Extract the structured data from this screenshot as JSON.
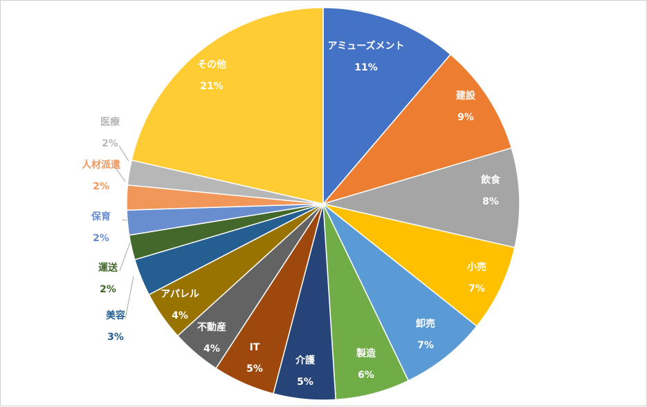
{
  "chart_data": {
    "type": "pie",
    "start_angle_deg": 0,
    "direction": "clockwise",
    "slices": [
      {
        "label": "アミューズメント",
        "value": 11,
        "value_label": "11%",
        "color": "#4472C4",
        "label_color": "#FFFFFF"
      },
      {
        "label": "建設",
        "value": 9,
        "value_label": "9%",
        "color": "#ED7D31",
        "label_color": "#FFFFFF"
      },
      {
        "label": "飲食",
        "value": 8,
        "value_label": "8%",
        "color": "#A5A5A5",
        "label_color": "#FFFFFF"
      },
      {
        "label": "小売",
        "value": 7,
        "value_label": "7%",
        "color": "#FFC000",
        "label_color": "#FFFFFF"
      },
      {
        "label": "卸売",
        "value": 7,
        "value_label": "7%",
        "color": "#5B9BD5",
        "label_color": "#FFFFFF"
      },
      {
        "label": "製造",
        "value": 6,
        "value_label": "6%",
        "color": "#70AD47",
        "label_color": "#FFFFFF"
      },
      {
        "label": "介護",
        "value": 5,
        "value_label": "5%",
        "color": "#264478",
        "label_color": "#FFFFFF"
      },
      {
        "label": "IT",
        "value": 5,
        "value_label": "5%",
        "color": "#9E480E",
        "label_color": "#FFFFFF"
      },
      {
        "label": "不動産",
        "value": 4,
        "value_label": "4%",
        "color": "#636363",
        "label_color": "#FFFFFF"
      },
      {
        "label": "アパレル",
        "value": 4,
        "value_label": "4%",
        "color": "#997300",
        "label_color": "#FFFFFF"
      },
      {
        "label": "美容",
        "value": 3,
        "value_label": "3%",
        "color": "#255E91",
        "label_color": "#255E91"
      },
      {
        "label": "運送",
        "value": 2,
        "value_label": "2%",
        "color": "#43682B",
        "label_color": "#43682B"
      },
      {
        "label": "保育",
        "value": 2,
        "value_label": "2%",
        "color": "#698ED0",
        "label_color": "#698ED0"
      },
      {
        "label": "人材派遣",
        "value": 2,
        "value_label": "2%",
        "color": "#F1975A",
        "label_color": "#F1975A"
      },
      {
        "label": "医療",
        "value": 2,
        "value_label": "2%",
        "color": "#B7B7B7",
        "label_color": "#B7B7B7"
      },
      {
        "label": "その他",
        "value": 21,
        "value_label": "21%",
        "color": "#FFCD33",
        "label_color": "#FFFFFF"
      }
    ]
  }
}
